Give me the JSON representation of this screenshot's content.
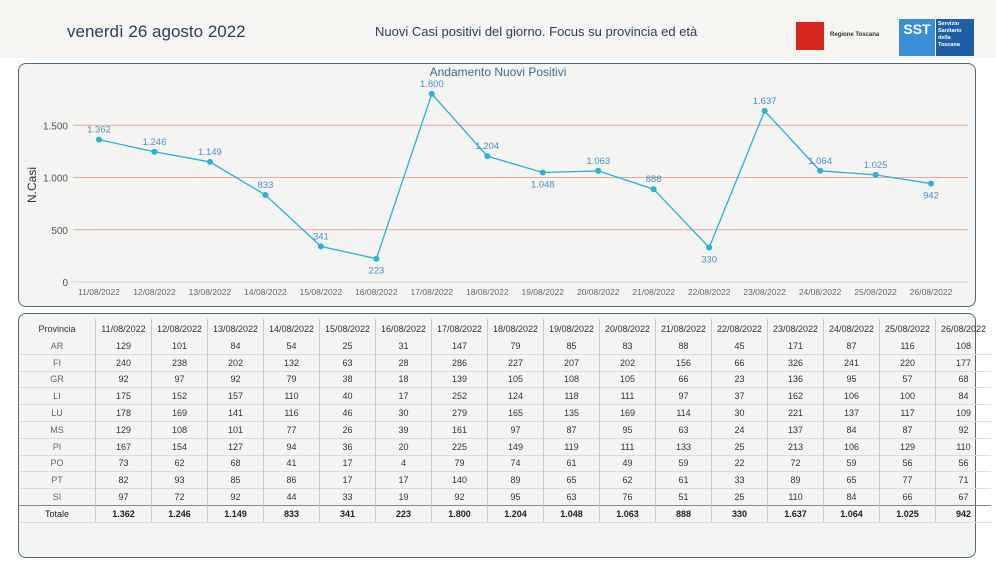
{
  "header": {
    "date": "venerdì 26 agosto 2022",
    "subtitle": "Nuovi Casi positivi del giorno. Focus su provincia ed età",
    "logo_rt_text": "Regione Toscana",
    "logo_sst_mark": "SST",
    "logo_sst_text": "Servizio\nSanitario\ndella\nToscana"
  },
  "chart_data": {
    "type": "line",
    "title": "Andamento Nuovi Positivi",
    "ylabel": "N.Casi",
    "xlabel": "",
    "ylim": [
      0,
      1800
    ],
    "yticks": [
      0,
      500,
      1000,
      1500
    ],
    "ytick_labels": [
      "0",
      "500",
      "1.000",
      "1.500"
    ],
    "grid": "horizontal",
    "categories": [
      "11/08/2022",
      "12/08/2022",
      "13/08/2022",
      "14/08/2022",
      "15/08/2022",
      "16/08/2022",
      "17/08/2022",
      "18/08/2022",
      "19/08/2022",
      "20/08/2022",
      "21/08/2022",
      "22/08/2022",
      "23/08/2022",
      "24/08/2022",
      "25/08/2022",
      "26/08/2022"
    ],
    "values": [
      1362,
      1246,
      1149,
      833,
      341,
      223,
      1800,
      1204,
      1048,
      1063,
      888,
      330,
      1637,
      1064,
      1025,
      942
    ],
    "value_labels": [
      "1.362",
      "1.246",
      "1.149",
      "833",
      "341",
      "223",
      "1.800",
      "1.204",
      "1.048",
      "1.063",
      "888",
      "330",
      "1.637",
      "1.064",
      "1.025",
      "942"
    ],
    "colors": {
      "line": "#23b5d3",
      "label": "#4a90c4",
      "grid": "#e8a89a"
    }
  },
  "table": {
    "province_header": "Provincia",
    "dates": [
      "11/08/2022",
      "12/08/2022",
      "13/08/2022",
      "14/08/2022",
      "15/08/2022",
      "16/08/2022",
      "17/08/2022",
      "18/08/2022",
      "19/08/2022",
      "20/08/2022",
      "21/08/2022",
      "22/08/2022",
      "23/08/2022",
      "24/08/2022",
      "25/08/2022",
      "26/08/2022"
    ],
    "rows": [
      {
        "prov": "AR",
        "vals": [
          "129",
          "101",
          "84",
          "54",
          "25",
          "31",
          "147",
          "79",
          "85",
          "83",
          "88",
          "45",
          "171",
          "87",
          "116",
          "108"
        ]
      },
      {
        "prov": "FI",
        "vals": [
          "240",
          "238",
          "202",
          "132",
          "63",
          "28",
          "286",
          "227",
          "207",
          "202",
          "156",
          "66",
          "326",
          "241",
          "220",
          "177"
        ]
      },
      {
        "prov": "GR",
        "vals": [
          "92",
          "97",
          "92",
          "79",
          "38",
          "18",
          "139",
          "105",
          "108",
          "105",
          "66",
          "23",
          "136",
          "95",
          "57",
          "68"
        ]
      },
      {
        "prov": "LI",
        "vals": [
          "175",
          "152",
          "157",
          "110",
          "40",
          "17",
          "252",
          "124",
          "118",
          "111",
          "97",
          "37",
          "162",
          "106",
          "100",
          "84"
        ]
      },
      {
        "prov": "LU",
        "vals": [
          "178",
          "169",
          "141",
          "116",
          "46",
          "30",
          "279",
          "165",
          "135",
          "169",
          "114",
          "30",
          "221",
          "137",
          "117",
          "109"
        ]
      },
      {
        "prov": "MS",
        "vals": [
          "129",
          "108",
          "101",
          "77",
          "26",
          "39",
          "161",
          "97",
          "87",
          "95",
          "63",
          "24",
          "137",
          "84",
          "87",
          "92"
        ]
      },
      {
        "prov": "PI",
        "vals": [
          "167",
          "154",
          "127",
          "94",
          "36",
          "20",
          "225",
          "149",
          "119",
          "111",
          "133",
          "25",
          "213",
          "106",
          "129",
          "110"
        ]
      },
      {
        "prov": "PO",
        "vals": [
          "73",
          "62",
          "68",
          "41",
          "17",
          "4",
          "79",
          "74",
          "61",
          "49",
          "59",
          "22",
          "72",
          "59",
          "56",
          "56"
        ]
      },
      {
        "prov": "PT",
        "vals": [
          "82",
          "93",
          "85",
          "86",
          "17",
          "17",
          "140",
          "89",
          "65",
          "62",
          "61",
          "33",
          "89",
          "65",
          "77",
          "71"
        ]
      },
      {
        "prov": "SI",
        "vals": [
          "97",
          "72",
          "92",
          "44",
          "33",
          "19",
          "92",
          "95",
          "63",
          "76",
          "51",
          "25",
          "110",
          "84",
          "66",
          "67"
        ]
      }
    ],
    "total": {
      "prov": "Totale",
      "vals": [
        "1.362",
        "1.246",
        "1.149",
        "833",
        "341",
        "223",
        "1.800",
        "1.204",
        "1.048",
        "1.063",
        "888",
        "330",
        "1.637",
        "1.064",
        "1.025",
        "942"
      ]
    }
  }
}
